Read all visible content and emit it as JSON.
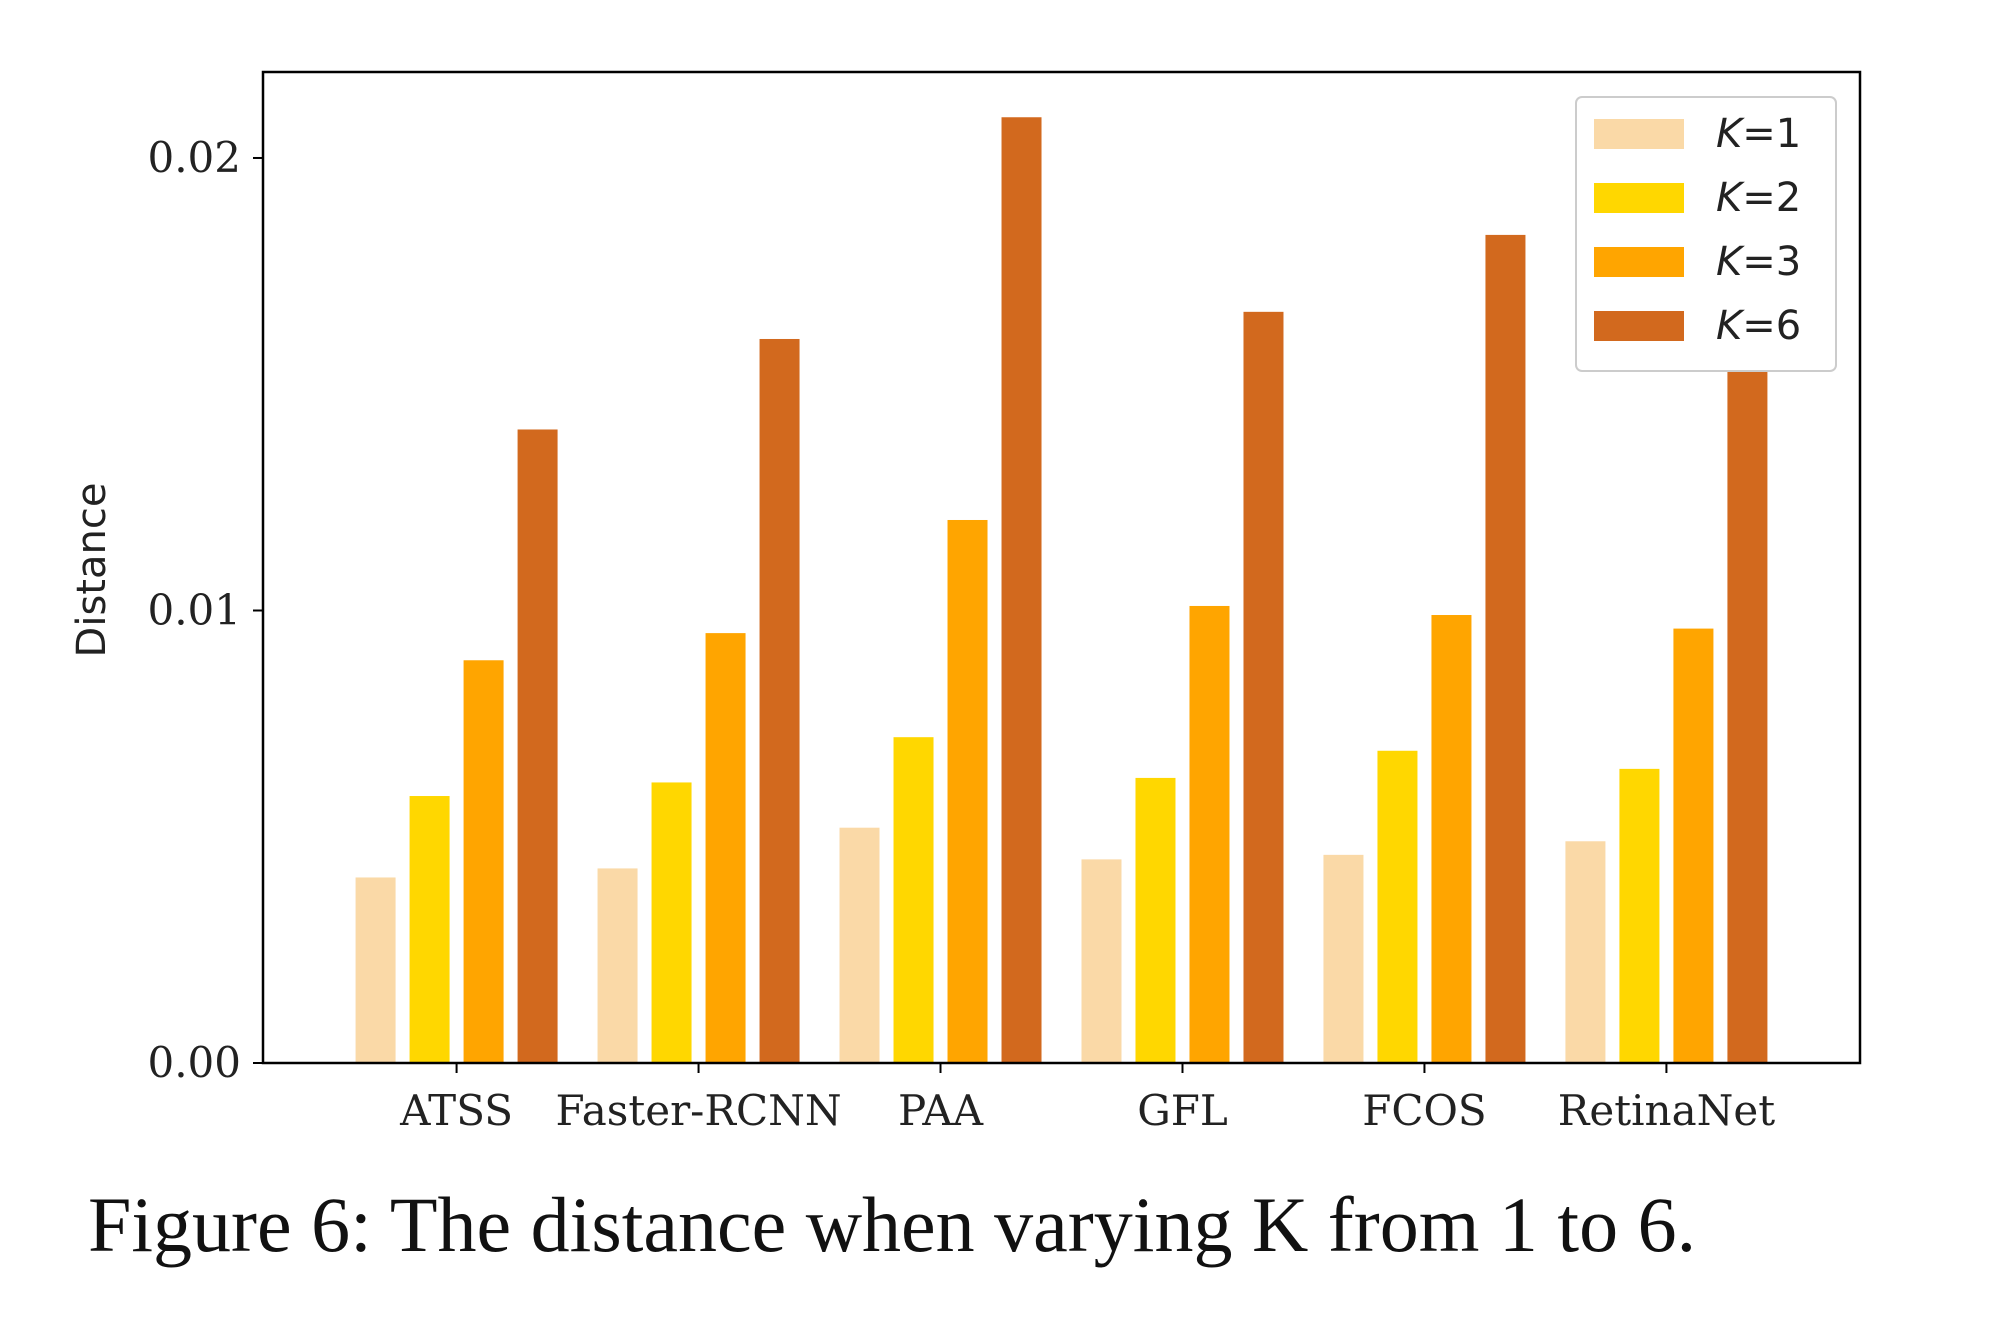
{
  "caption": "Figure 6: The distance when varying K from 1 to 6.",
  "chart_data": {
    "type": "bar",
    "title": "",
    "xlabel": "",
    "ylabel": "Distance",
    "ylim": [
      0,
      0.0219
    ],
    "yticks": [
      "0.00",
      "0.01",
      "0.02"
    ],
    "yticks_values": [
      0,
      0.01,
      0.02
    ],
    "categories": [
      "ATSS",
      "Faster-RCNN",
      "PAA",
      "GFL",
      "FCOS",
      "RetinaNet"
    ],
    "series": [
      {
        "name": "K=1",
        "color": "#FAD9A7",
        "values": [
          0.0041,
          0.0043,
          0.0052,
          0.0045,
          0.0046,
          0.0049
        ]
      },
      {
        "name": "K=2",
        "color": "#FFD700",
        "values": [
          0.0059,
          0.0062,
          0.0072,
          0.0063,
          0.0069,
          0.0065
        ]
      },
      {
        "name": "K=3",
        "color": "#FFA500",
        "values": [
          0.0089,
          0.0095,
          0.012,
          0.0101,
          0.0099,
          0.0096
        ]
      },
      {
        "name": "K=6",
        "color": "#D2691E",
        "values": [
          0.014,
          0.016,
          0.0209,
          0.0166,
          0.0183,
          0.0153
        ]
      }
    ],
    "legend_position": "top-right",
    "grid": false
  }
}
